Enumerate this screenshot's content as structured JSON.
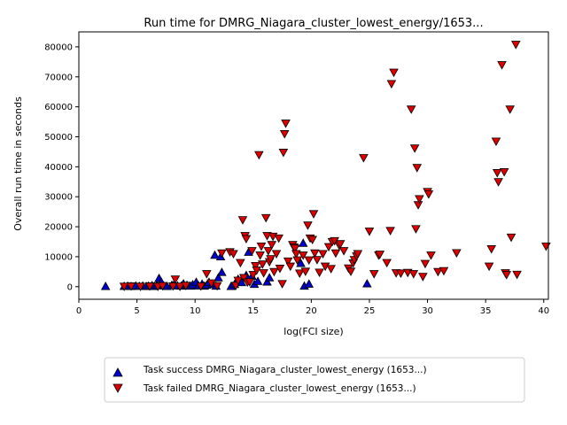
{
  "chart_data": {
    "type": "scatter",
    "title": "Run time for DMRG_Niagara_cluster_lowest_energy/1653...",
    "xlabel": "log(FCI size)",
    "ylabel": "Overall run time in seconds",
    "xlim": [
      0,
      40.4
    ],
    "ylim": [
      -4200,
      85000
    ],
    "xticks": [
      0,
      5,
      10,
      15,
      20,
      25,
      30,
      35,
      40
    ],
    "yticks": [
      0,
      10000,
      20000,
      30000,
      40000,
      50000,
      60000,
      70000,
      80000
    ],
    "grid": false,
    "legend_position": "below-plot",
    "series": [
      {
        "name": "Task success DMRG_Niagara_cluster_lowest_energy (1653...)",
        "marker": "triangle-up",
        "color": "#0000cc",
        "points": [
          [
            2.3,
            100
          ],
          [
            3.9,
            150
          ],
          [
            4.2,
            200
          ],
          [
            4.5,
            100
          ],
          [
            4.9,
            300
          ],
          [
            5.2,
            150
          ],
          [
            5.5,
            250
          ],
          [
            5.8,
            100
          ],
          [
            6.0,
            200
          ],
          [
            6.3,
            400
          ],
          [
            6.5,
            100
          ],
          [
            6.7,
            500
          ],
          [
            6.9,
            2800
          ],
          [
            7.1,
            1500
          ],
          [
            7.3,
            300
          ],
          [
            7.6,
            100
          ],
          [
            8.0,
            500
          ],
          [
            8.2,
            800
          ],
          [
            8.5,
            300
          ],
          [
            8.8,
            200
          ],
          [
            9.0,
            1000
          ],
          [
            9.3,
            500
          ],
          [
            9.6,
            200
          ],
          [
            9.8,
            700
          ],
          [
            10.1,
            1500
          ],
          [
            10.3,
            300
          ],
          [
            10.6,
            900
          ],
          [
            10.8,
            200
          ],
          [
            11.0,
            500
          ],
          [
            11.2,
            1500
          ],
          [
            11.5,
            800
          ],
          [
            11.7,
            10500
          ],
          [
            11.8,
            200
          ],
          [
            12.0,
            3000
          ],
          [
            12.2,
            10000
          ],
          [
            12.3,
            4800
          ],
          [
            13.1,
            100
          ],
          [
            13.4,
            800
          ],
          [
            13.7,
            2500
          ],
          [
            14.0,
            1400
          ],
          [
            14.4,
            3800
          ],
          [
            14.6,
            11500
          ],
          [
            14.9,
            3500
          ],
          [
            15.1,
            800
          ],
          [
            15.4,
            1800
          ],
          [
            16.2,
            1600
          ],
          [
            16.4,
            3000
          ],
          [
            19.1,
            7800
          ],
          [
            19.3,
            14500
          ],
          [
            19.4,
            200
          ],
          [
            19.8,
            900
          ],
          [
            24.8,
            1000
          ]
        ]
      },
      {
        "name": "Task failed DMRG_Niagara_cluster_lowest_energy (1653...)",
        "marker": "triangle-down",
        "color": "#dd0000",
        "points": [
          [
            3.9,
            100
          ],
          [
            4.5,
            200
          ],
          [
            5.3,
            100
          ],
          [
            6.1,
            200
          ],
          [
            6.8,
            100
          ],
          [
            7.2,
            300
          ],
          [
            8.1,
            200
          ],
          [
            8.3,
            2500
          ],
          [
            8.7,
            100
          ],
          [
            9.2,
            400
          ],
          [
            10.5,
            200
          ],
          [
            11.0,
            4300
          ],
          [
            11.4,
            1200
          ],
          [
            11.9,
            300
          ],
          [
            12.3,
            11200
          ],
          [
            13.0,
            11600
          ],
          [
            13.3,
            11000
          ],
          [
            13.5,
            400
          ],
          [
            13.7,
            2100
          ],
          [
            13.9,
            8000
          ],
          [
            14.1,
            22300
          ],
          [
            14.2,
            3000
          ],
          [
            14.3,
            17000
          ],
          [
            14.4,
            16000
          ],
          [
            14.5,
            1500
          ],
          [
            14.7,
            1600
          ],
          [
            14.9,
            12000
          ],
          [
            15.0,
            4000
          ],
          [
            15.2,
            7000
          ],
          [
            15.3,
            5500
          ],
          [
            15.5,
            44000
          ],
          [
            15.6,
            10500
          ],
          [
            15.7,
            13500
          ],
          [
            15.8,
            7500
          ],
          [
            15.9,
            4600
          ],
          [
            16.1,
            23000
          ],
          [
            16.2,
            17000
          ],
          [
            16.3,
            12000
          ],
          [
            16.4,
            8300
          ],
          [
            16.5,
            9300
          ],
          [
            16.6,
            14000
          ],
          [
            16.7,
            16800
          ],
          [
            16.8,
            5000
          ],
          [
            17.0,
            11000
          ],
          [
            17.2,
            16200
          ],
          [
            17.3,
            6100
          ],
          [
            17.5,
            1000
          ],
          [
            17.6,
            44800
          ],
          [
            17.7,
            51000
          ],
          [
            17.8,
            54500
          ],
          [
            18.0,
            8500
          ],
          [
            18.2,
            6800
          ],
          [
            18.4,
            14000
          ],
          [
            18.5,
            13200
          ],
          [
            18.6,
            12800
          ],
          [
            18.7,
            11000
          ],
          [
            18.8,
            8900
          ],
          [
            19.0,
            4500
          ],
          [
            19.3,
            10500
          ],
          [
            19.5,
            5100
          ],
          [
            19.7,
            20500
          ],
          [
            19.8,
            8900
          ],
          [
            19.9,
            16200
          ],
          [
            20.1,
            15700
          ],
          [
            20.2,
            24300
          ],
          [
            20.3,
            11200
          ],
          [
            20.5,
            9000
          ],
          [
            20.7,
            4800
          ],
          [
            21.0,
            11000
          ],
          [
            21.2,
            6800
          ],
          [
            21.5,
            13300
          ],
          [
            21.7,
            6000
          ],
          [
            21.8,
            15000
          ],
          [
            22.0,
            15300
          ],
          [
            22.1,
            11200
          ],
          [
            22.4,
            13800
          ],
          [
            22.5,
            14300
          ],
          [
            22.8,
            12000
          ],
          [
            23.2,
            6200
          ],
          [
            23.4,
            5100
          ],
          [
            23.6,
            7900
          ],
          [
            23.7,
            9000
          ],
          [
            23.9,
            10200
          ],
          [
            24.0,
            11000
          ],
          [
            24.5,
            43000
          ],
          [
            25.0,
            18500
          ],
          [
            25.4,
            4300
          ],
          [
            25.8,
            10500
          ],
          [
            25.9,
            10800
          ],
          [
            26.5,
            8000
          ],
          [
            26.8,
            18700
          ],
          [
            26.9,
            67700
          ],
          [
            27.1,
            71500
          ],
          [
            27.3,
            4600
          ],
          [
            27.7,
            4500
          ],
          [
            28.3,
            4700
          ],
          [
            28.6,
            59200
          ],
          [
            28.8,
            4300
          ],
          [
            28.9,
            46200
          ],
          [
            29.0,
            19300
          ],
          [
            29.1,
            39700
          ],
          [
            29.2,
            27300
          ],
          [
            29.3,
            29300
          ],
          [
            29.6,
            3400
          ],
          [
            29.8,
            7700
          ],
          [
            30.0,
            31700
          ],
          [
            30.1,
            30900
          ],
          [
            30.3,
            10500
          ],
          [
            30.9,
            5000
          ],
          [
            31.4,
            5300
          ],
          [
            32.5,
            11300
          ],
          [
            35.3,
            6800
          ],
          [
            35.5,
            12600
          ],
          [
            35.9,
            48500
          ],
          [
            36.0,
            38000
          ],
          [
            36.1,
            35000
          ],
          [
            36.4,
            74000
          ],
          [
            36.6,
            38300
          ],
          [
            36.7,
            4600
          ],
          [
            36.8,
            4000
          ],
          [
            37.1,
            59200
          ],
          [
            37.2,
            16500
          ],
          [
            37.6,
            80800
          ],
          [
            37.7,
            4100
          ],
          [
            40.2,
            13500
          ]
        ]
      }
    ]
  }
}
